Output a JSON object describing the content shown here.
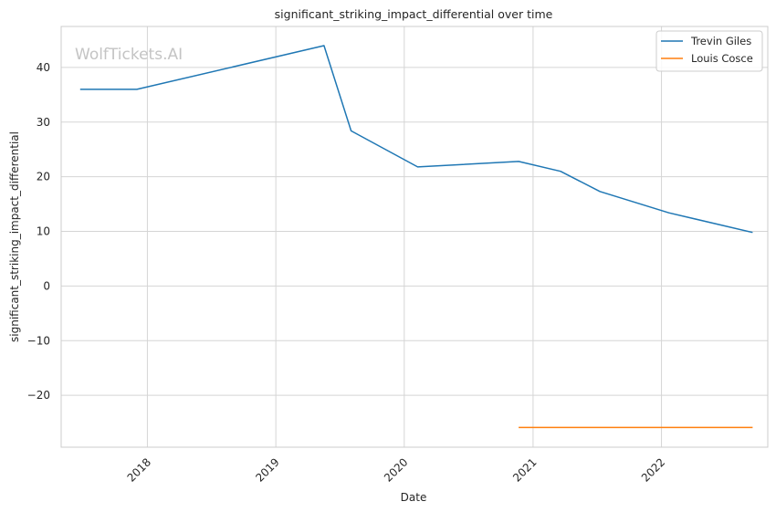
{
  "chart_data": {
    "type": "line",
    "title": "significant_striking_impact_differential over time",
    "xlabel": "Date",
    "ylabel": "significant_striking_impact_differential",
    "watermark": "WolfTickets.AI",
    "xlim": [
      "2017-05-01",
      "2022-10-30"
    ],
    "ylim": [
      -29.5,
      47.5
    ],
    "x_ticks": [
      "2018-01-01",
      "2019-01-01",
      "2020-01-01",
      "2021-01-01",
      "2022-01-01"
    ],
    "x_tick_labels": [
      "2018",
      "2019",
      "2020",
      "2021",
      "2022"
    ],
    "y_ticks": [
      -20,
      -10,
      0,
      10,
      20,
      30,
      40
    ],
    "y_tick_labels": [
      "−20",
      "−10",
      "0",
      "10",
      "20",
      "30",
      "40"
    ],
    "grid": true,
    "legend_position": "top-right",
    "series": [
      {
        "name": "Trevin Giles",
        "color": "#1f77b4",
        "x": [
          "2017-06-24",
          "2017-12-02",
          "2019-05-18",
          "2019-08-03",
          "2020-02-08",
          "2020-11-21",
          "2021-03-20",
          "2021-07-10",
          "2022-01-22",
          "2022-09-17"
        ],
        "y": [
          36.0,
          36.0,
          44.0,
          28.4,
          21.8,
          22.8,
          21.0,
          17.3,
          13.4,
          9.8
        ]
      },
      {
        "name": "Louis Cosce",
        "color": "#ff7f0e",
        "x": [
          "2020-11-21",
          "2022-09-17"
        ],
        "y": [
          -25.9,
          -25.9
        ]
      }
    ]
  }
}
